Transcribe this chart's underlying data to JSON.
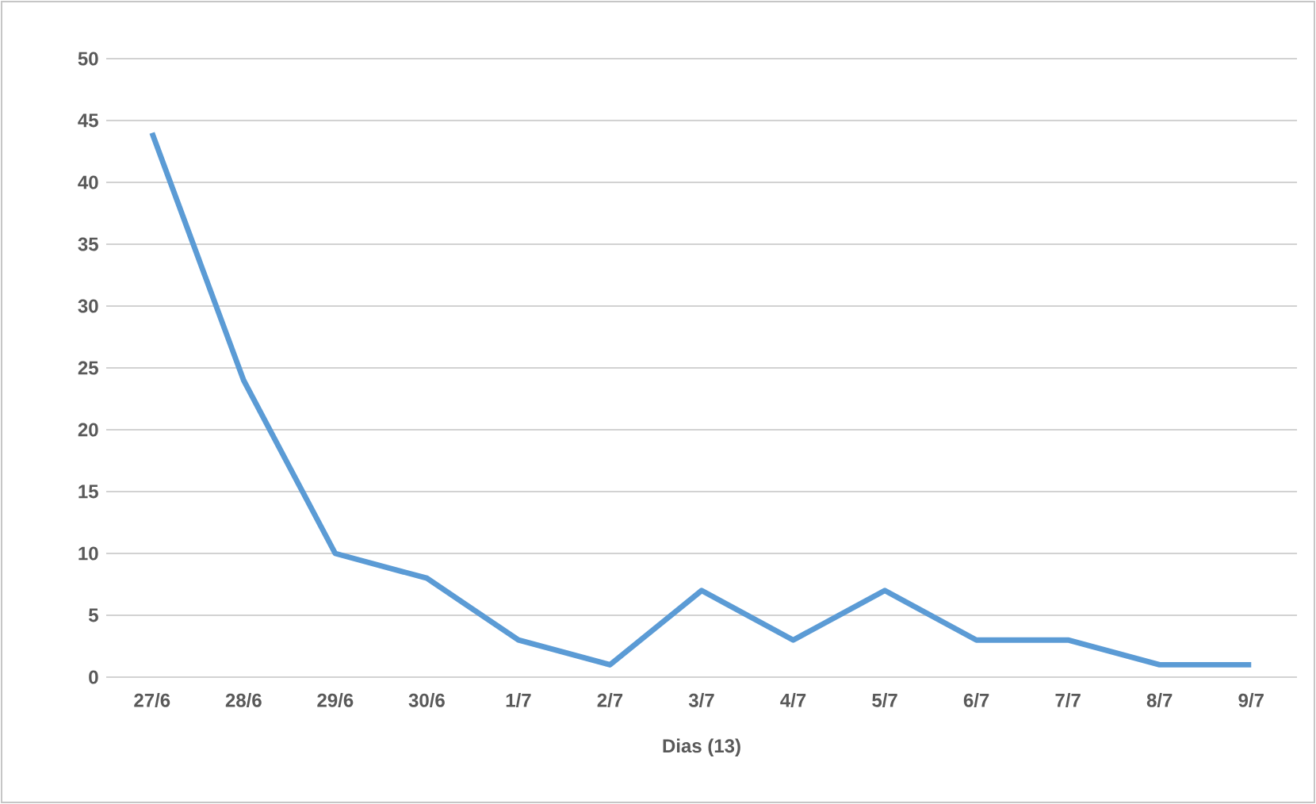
{
  "chart_data": {
    "type": "line",
    "xlabel": "Dias (13)",
    "categories": [
      "27/6",
      "28/6",
      "29/6",
      "30/6",
      "1/7",
      "2/7",
      "3/7",
      "4/7",
      "5/7",
      "6/7",
      "7/7",
      "8/7",
      "9/7"
    ],
    "values": [
      44,
      24,
      10,
      8,
      3,
      1,
      7,
      3,
      7,
      3,
      3,
      1,
      1
    ],
    "color": "#5b9bd5",
    "ylim": [
      0,
      50
    ],
    "yticks": [
      0,
      5,
      10,
      15,
      20,
      25,
      30,
      35,
      40,
      45,
      50
    ],
    "grid": "y"
  }
}
